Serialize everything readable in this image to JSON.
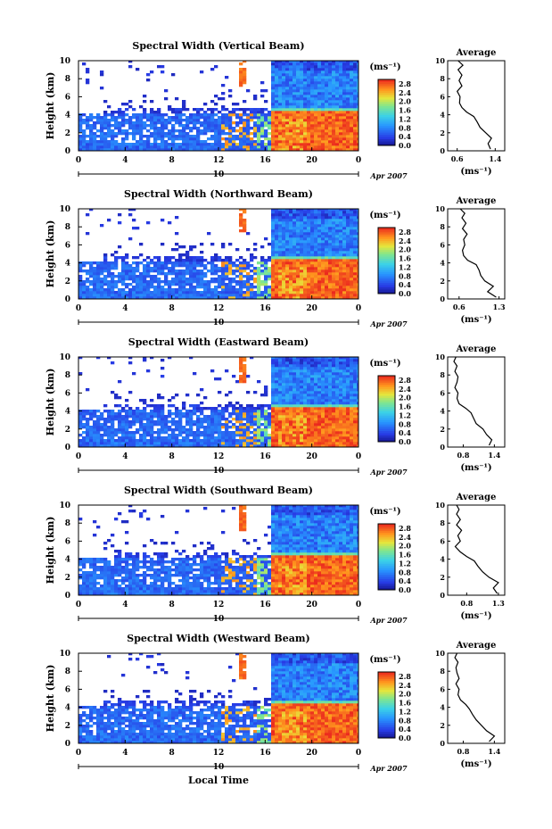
{
  "figure": {
    "xlabel": "Local Time",
    "ylabel": "Height (km)",
    "unit_label": "(ms⁻¹)",
    "date_label": "Apr 2007",
    "day_label": "10",
    "avg_title": "Average",
    "avg_xlabel": "(ms⁻¹)"
  },
  "chart_data": [
    {
      "type": "heatmap",
      "title": "Spectral Width (Vertical Beam)",
      "x_ticks": [
        "0",
        "4",
        "8",
        "12",
        "16",
        "20",
        "0"
      ],
      "xlim": [
        0,
        24
      ],
      "y_ticks": [
        "0",
        "2",
        "4",
        "6",
        "8",
        "10"
      ],
      "ylim": [
        0,
        10
      ],
      "colorbar_ticks": [
        "0.0",
        "0.4",
        "0.8",
        "1.2",
        "1.6",
        "2.0",
        "2.4",
        "2.8"
      ],
      "colorbar_range": [
        0,
        3.0
      ],
      "avg_x_ticks": [
        "0.6",
        "1.4"
      ],
      "avg_xlim": [
        0.4,
        1.6
      ],
      "profile": [
        [
          1.3,
          0.2
        ],
        [
          1.25,
          0.8
        ],
        [
          1.32,
          1.4
        ],
        [
          1.2,
          2.0
        ],
        [
          1.08,
          2.6
        ],
        [
          1.02,
          3.2
        ],
        [
          0.95,
          3.8
        ],
        [
          0.8,
          4.3
        ],
        [
          0.7,
          4.8
        ],
        [
          0.65,
          5.3
        ],
        [
          0.66,
          6.0
        ],
        [
          0.6,
          6.6
        ],
        [
          0.7,
          7.2
        ],
        [
          0.64,
          7.8
        ],
        [
          0.7,
          8.4
        ],
        [
          0.62,
          9.0
        ],
        [
          0.72,
          9.5
        ],
        [
          0.62,
          10.0
        ]
      ]
    },
    {
      "type": "heatmap",
      "title": "Spectral Width (Northward Beam)",
      "x_ticks": [
        "0",
        "4",
        "8",
        "12",
        "16",
        "20",
        "0"
      ],
      "xlim": [
        0,
        24
      ],
      "y_ticks": [
        "0",
        "2",
        "4",
        "6",
        "8",
        "10"
      ],
      "ylim": [
        0,
        10
      ],
      "colorbar_ticks": [
        "0.0",
        "0.4",
        "0.8",
        "1.2",
        "1.6",
        "2.0",
        "2.4",
        "2.8"
      ],
      "colorbar_range": [
        0,
        3.0
      ],
      "avg_x_ticks": [
        "0.6",
        "1.3"
      ],
      "avg_xlim": [
        0.4,
        1.4
      ],
      "profile": [
        [
          1.25,
          0.2
        ],
        [
          1.1,
          0.8
        ],
        [
          1.2,
          1.4
        ],
        [
          1.05,
          2.0
        ],
        [
          0.98,
          2.6
        ],
        [
          0.95,
          3.2
        ],
        [
          0.9,
          3.8
        ],
        [
          0.75,
          4.3
        ],
        [
          0.68,
          4.8
        ],
        [
          0.66,
          5.4
        ],
        [
          0.7,
          6.0
        ],
        [
          0.68,
          6.6
        ],
        [
          0.74,
          7.2
        ],
        [
          0.66,
          7.8
        ],
        [
          0.72,
          8.4
        ],
        [
          0.65,
          9.0
        ],
        [
          0.7,
          9.5
        ],
        [
          0.62,
          10.0
        ]
      ]
    },
    {
      "type": "heatmap",
      "title": "Spectral Width (Eastward Beam)",
      "x_ticks": [
        "0",
        "4",
        "8",
        "12",
        "16",
        "20",
        "0"
      ],
      "xlim": [
        0,
        24
      ],
      "y_ticks": [
        "0",
        "2",
        "4",
        "6",
        "8",
        "10"
      ],
      "ylim": [
        0,
        10
      ],
      "colorbar_ticks": [
        "0.0",
        "0.4",
        "0.8",
        "1.2",
        "1.6",
        "2.0",
        "2.4",
        "2.8"
      ],
      "colorbar_range": [
        0,
        3.0
      ],
      "avg_x_ticks": [
        "0.8",
        "1.4"
      ],
      "avg_xlim": [
        0.5,
        1.6
      ],
      "profile": [
        [
          1.3,
          0.2
        ],
        [
          1.35,
          0.8
        ],
        [
          1.25,
          1.4
        ],
        [
          1.18,
          2.0
        ],
        [
          1.05,
          2.6
        ],
        [
          1.0,
          3.2
        ],
        [
          0.95,
          3.8
        ],
        [
          0.85,
          4.3
        ],
        [
          0.72,
          4.8
        ],
        [
          0.68,
          5.4
        ],
        [
          0.7,
          6.0
        ],
        [
          0.64,
          6.6
        ],
        [
          0.68,
          7.2
        ],
        [
          0.7,
          7.8
        ],
        [
          0.64,
          8.4
        ],
        [
          0.68,
          9.0
        ],
        [
          0.62,
          9.5
        ],
        [
          0.66,
          10.0
        ]
      ]
    },
    {
      "type": "heatmap",
      "title": "Spectral Width (Southward Beam)",
      "x_ticks": [
        "0",
        "4",
        "8",
        "12",
        "16",
        "20",
        "0"
      ],
      "xlim": [
        0,
        24
      ],
      "y_ticks": [
        "0",
        "2",
        "4",
        "6",
        "8",
        "10"
      ],
      "ylim": [
        0,
        10
      ],
      "colorbar_ticks": [
        "0.0",
        "0.4",
        "0.8",
        "1.2",
        "1.6",
        "2.0",
        "2.4",
        "2.8"
      ],
      "colorbar_range": [
        0,
        3.0
      ],
      "avg_x_ticks": [
        "0.8",
        "1.3"
      ],
      "avg_xlim": [
        0.5,
        1.4
      ],
      "profile": [
        [
          1.28,
          0.2
        ],
        [
          1.22,
          0.8
        ],
        [
          1.3,
          1.4
        ],
        [
          1.15,
          2.0
        ],
        [
          1.05,
          2.6
        ],
        [
          0.98,
          3.2
        ],
        [
          0.92,
          3.8
        ],
        [
          0.8,
          4.3
        ],
        [
          0.7,
          4.8
        ],
        [
          0.62,
          5.4
        ],
        [
          0.7,
          6.0
        ],
        [
          0.66,
          6.6
        ],
        [
          0.72,
          7.2
        ],
        [
          0.64,
          7.8
        ],
        [
          0.7,
          8.4
        ],
        [
          0.64,
          9.0
        ],
        [
          0.68,
          9.5
        ],
        [
          0.64,
          10.0
        ]
      ]
    },
    {
      "type": "heatmap",
      "title": "Spectral Width (Westward Beam)",
      "x_ticks": [
        "0",
        "4",
        "8",
        "12",
        "16",
        "20",
        "0"
      ],
      "xlim": [
        0,
        24
      ],
      "y_ticks": [
        "0",
        "2",
        "4",
        "6",
        "8",
        "10"
      ],
      "ylim": [
        0,
        10
      ],
      "colorbar_ticks": [
        "0.0",
        "0.4",
        "0.8",
        "1.2",
        "1.6",
        "2.0",
        "2.4",
        "2.8"
      ],
      "colorbar_range": [
        0,
        3.0
      ],
      "avg_x_ticks": [
        "0.8",
        "1.4"
      ],
      "avg_xlim": [
        0.5,
        1.6
      ],
      "profile": [
        [
          1.3,
          0.2
        ],
        [
          1.4,
          0.8
        ],
        [
          1.25,
          1.4
        ],
        [
          1.15,
          2.0
        ],
        [
          1.05,
          2.6
        ],
        [
          0.98,
          3.2
        ],
        [
          0.92,
          3.8
        ],
        [
          0.85,
          4.3
        ],
        [
          0.75,
          4.8
        ],
        [
          0.7,
          5.4
        ],
        [
          0.72,
          6.0
        ],
        [
          0.66,
          6.6
        ],
        [
          0.72,
          7.2
        ],
        [
          0.68,
          7.8
        ],
        [
          0.66,
          8.4
        ],
        [
          0.7,
          9.0
        ],
        [
          0.64,
          9.5
        ],
        [
          0.68,
          10.0
        ]
      ]
    }
  ]
}
